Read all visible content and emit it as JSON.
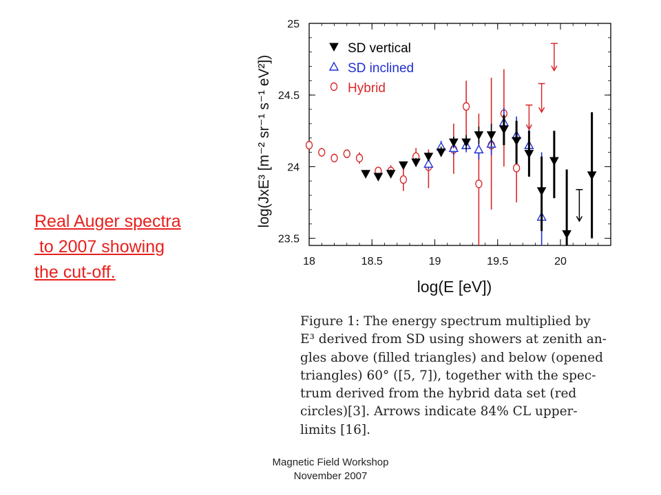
{
  "note": {
    "lines": [
      "Real Auger spectra",
      " to 2007 showing",
      "the cut-off."
    ],
    "color": "#e8201c"
  },
  "footer": {
    "line1": "Magnetic Field Workshop",
    "line2": "November 2007"
  },
  "caption": {
    "lines": [
      "Figure 1:  The energy spectrum multiplied by",
      "E³ derived from SD using showers at zenith an-",
      "gles above (filled triangles) and below (opened",
      "triangles) 60° ([5, 7]), together with the spec-",
      "trum derived from the hybrid data set (red",
      "circles)[3].   Arrows indicate 84% CL upper-",
      "limits [16]."
    ]
  },
  "chart_data": {
    "type": "scatter",
    "xlabel": "log(E [eV])",
    "ylabel": "log(JxE³ [m⁻² sr⁻¹ s⁻¹ eV²])",
    "xlim": [
      18,
      20.4
    ],
    "ylim": [
      23.45,
      25
    ],
    "xticks": [
      "18",
      "18.5",
      "19",
      "19.5",
      "20"
    ],
    "xtick_values": [
      18,
      18.5,
      19,
      19.5,
      20
    ],
    "yticks": [
      "23.5",
      "24",
      "24.5",
      "25"
    ],
    "ytick_values": [
      23.5,
      24,
      24.5,
      25
    ],
    "legend_position": "top-left",
    "series": [
      {
        "name": "SD vertical",
        "marker": "filled-triangle-down",
        "color": "#000000",
        "points": [
          {
            "x": 18.45,
            "y": 23.95,
            "lo": 23.93,
            "hi": 23.97
          },
          {
            "x": 18.55,
            "y": 23.93,
            "lo": 23.91,
            "hi": 23.95
          },
          {
            "x": 18.65,
            "y": 23.95,
            "lo": 23.93,
            "hi": 23.98
          },
          {
            "x": 18.75,
            "y": 24.01,
            "lo": 23.99,
            "hi": 24.03
          },
          {
            "x": 18.85,
            "y": 24.03,
            "lo": 24.0,
            "hi": 24.06
          },
          {
            "x": 18.95,
            "y": 24.07,
            "lo": 24.04,
            "hi": 24.1
          },
          {
            "x": 19.05,
            "y": 24.1,
            "lo": 24.07,
            "hi": 24.14
          },
          {
            "x": 19.15,
            "y": 24.17,
            "lo": 24.13,
            "hi": 24.21
          },
          {
            "x": 19.25,
            "y": 24.17,
            "lo": 24.12,
            "hi": 24.22
          },
          {
            "x": 19.35,
            "y": 24.22,
            "lo": 24.16,
            "hi": 24.28
          },
          {
            "x": 19.45,
            "y": 24.22,
            "lo": 24.14,
            "hi": 24.3
          },
          {
            "x": 19.55,
            "y": 24.26,
            "lo": 24.15,
            "hi": 24.36
          },
          {
            "x": 19.65,
            "y": 24.18,
            "lo": 24.02,
            "hi": 24.32
          },
          {
            "x": 19.75,
            "y": 24.09,
            "lo": 23.93,
            "hi": 24.25
          },
          {
            "x": 19.85,
            "y": 23.83,
            "lo": 23.55,
            "hi": 24.07
          },
          {
            "x": 19.95,
            "y": 24.04,
            "lo": 23.78,
            "hi": 24.25
          },
          {
            "x": 20.05,
            "y": 23.53,
            "lo": 23.45,
            "hi": 23.98
          },
          {
            "x": 20.25,
            "y": 23.94,
            "lo": 23.5,
            "hi": 24.38
          }
        ]
      },
      {
        "name": "SD inclined",
        "marker": "open-triangle-up",
        "color": "#1e2fd0",
        "points": [
          {
            "x": 18.95,
            "y": 24.02,
            "lo": 23.98,
            "hi": 24.06
          },
          {
            "x": 19.05,
            "y": 24.14,
            "lo": 24.1,
            "hi": 24.18
          },
          {
            "x": 19.15,
            "y": 24.13,
            "lo": 24.08,
            "hi": 24.18
          },
          {
            "x": 19.25,
            "y": 24.15,
            "lo": 24.1,
            "hi": 24.2
          },
          {
            "x": 19.35,
            "y": 24.12,
            "lo": 24.05,
            "hi": 24.19
          },
          {
            "x": 19.45,
            "y": 24.16,
            "lo": 24.08,
            "hi": 24.24
          },
          {
            "x": 19.55,
            "y": 24.31,
            "lo": 24.2,
            "hi": 24.41
          },
          {
            "x": 19.65,
            "y": 24.22,
            "lo": 24.08,
            "hi": 24.35
          },
          {
            "x": 19.75,
            "y": 24.15,
            "lo": 23.98,
            "hi": 24.3
          },
          {
            "x": 19.85,
            "y": 23.65,
            "lo": 23.45,
            "hi": 24.1
          }
        ]
      },
      {
        "name": "Hybrid",
        "marker": "open-circle",
        "color": "#d8282a",
        "points": [
          {
            "x": 18.0,
            "y": 24.15,
            "lo": 24.12,
            "hi": 24.18
          },
          {
            "x": 18.1,
            "y": 24.1,
            "lo": 24.07,
            "hi": 24.13
          },
          {
            "x": 18.2,
            "y": 24.06,
            "lo": 24.03,
            "hi": 24.09
          },
          {
            "x": 18.3,
            "y": 24.09,
            "lo": 24.06,
            "hi": 24.12
          },
          {
            "x": 18.4,
            "y": 24.06,
            "lo": 24.02,
            "hi": 24.1
          },
          {
            "x": 18.55,
            "y": 23.97,
            "lo": 23.94,
            "hi": 24.0
          },
          {
            "x": 18.65,
            "y": 23.97,
            "lo": 23.94,
            "hi": 24.01
          },
          {
            "x": 18.75,
            "y": 23.91,
            "lo": 23.83,
            "hi": 23.99
          },
          {
            "x": 18.85,
            "y": 24.07,
            "lo": 24.01,
            "hi": 24.13
          },
          {
            "x": 18.95,
            "y": 24.0,
            "lo": 23.85,
            "hi": 24.12
          },
          {
            "x": 19.15,
            "y": 24.12,
            "lo": 23.95,
            "hi": 24.3
          },
          {
            "x": 19.25,
            "y": 24.42,
            "lo": 24.17,
            "hi": 24.6
          },
          {
            "x": 19.35,
            "y": 23.88,
            "lo": 23.45,
            "hi": 24.37
          },
          {
            "x": 19.45,
            "y": 24.15,
            "lo": 23.7,
            "hi": 24.62
          },
          {
            "x": 19.55,
            "y": 24.37,
            "lo": 24.0,
            "hi": 24.68
          },
          {
            "x": 19.65,
            "y": 23.99,
            "lo": 23.75,
            "hi": 24.28
          }
        ]
      }
    ],
    "upper_limits": [
      {
        "color": "#d8282a",
        "x": 19.75,
        "from": 24.43,
        "to": 24.26
      },
      {
        "color": "#d8282a",
        "x": 19.85,
        "from": 24.58,
        "to": 24.38
      },
      {
        "color": "#d8282a",
        "x": 19.95,
        "from": 24.86,
        "to": 24.67
      },
      {
        "color": "#000000",
        "x": 20.15,
        "from": 23.84,
        "to": 23.62
      }
    ]
  }
}
